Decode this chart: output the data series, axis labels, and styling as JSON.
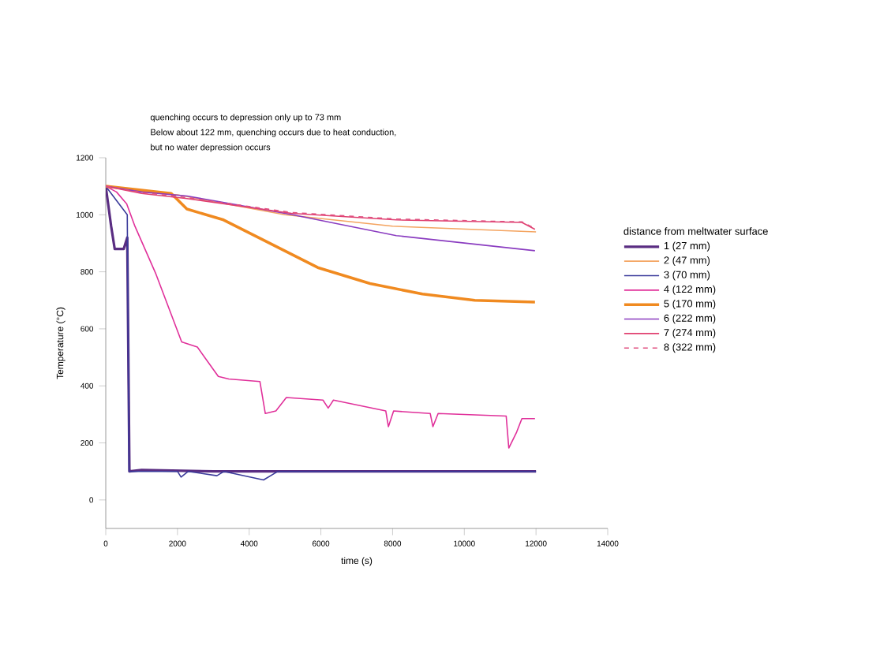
{
  "chart_data": {
    "type": "line",
    "annotations": [
      "quenching occurs to depression only up to 73 mm",
      "Below about 122 mm, quenching occurs due to heat conduction,",
      "but no water depression occurs"
    ],
    "xlabel": "time (s)",
    "ylabel": "Temperature (°C)",
    "legend_title": "distance from meltwater surface",
    "xlim": [
      0,
      14000
    ],
    "ylim": [
      -100,
      1200
    ],
    "xticks": [
      0,
      2000,
      4000,
      6000,
      8000,
      10000,
      12000,
      14000
    ],
    "yticks": [
      0,
      200,
      400,
      600,
      800,
      1000,
      1200
    ],
    "legend": "right",
    "grid": false,
    "series": [
      {
        "name": "1 (27 mm)",
        "color": "#5a2d82",
        "x": [
          0,
          150,
          250,
          500,
          600,
          660,
          1000,
          3000,
          6000,
          12000
        ],
        "values": [
          1100,
          960,
          880,
          880,
          920,
          100,
          105,
          100,
          100,
          100
        ]
      },
      {
        "name": "2 (47 mm)",
        "color": "#f4a460",
        "x": [
          0,
          1000,
          2000,
          5000,
          8000,
          12000
        ],
        "values": [
          1100,
          1080,
          1070,
          1000,
          960,
          940
        ]
      },
      {
        "name": "3 (70 mm)",
        "color": "#3a3a9a",
        "x": [
          0,
          300,
          600,
          650,
          2000,
          2100,
          2300,
          3100,
          3300,
          4400,
          4800,
          12000
        ],
        "values": [
          1100,
          1050,
          1000,
          100,
          100,
          80,
          100,
          85,
          100,
          70,
          100,
          100
        ]
      },
      {
        "name": "4 (122 mm)",
        "color": "#e0309a",
        "x": [
          0,
          300,
          584,
          800,
          1387,
          2117,
          2555,
          3139,
          3430,
          4300,
          4450,
          4745,
          5036,
          6058,
          6204,
          6350,
          7810,
          7883,
          8029,
          9050,
          9124,
          9270,
          11168,
          11241,
          11460,
          11606,
          11971
        ],
        "values": [
          1100,
          1080,
          1038,
          964,
          796,
          554,
          536,
          433,
          424,
          415,
          303,
          312,
          359,
          350,
          322,
          350,
          312,
          257,
          312,
          303,
          257,
          303,
          294,
          182,
          238,
          285,
          285
        ]
      },
      {
        "name": "5 (170 mm)",
        "color": "#f08a20",
        "x": [
          0,
          1825,
          2263,
          3285,
          4453,
          5912,
          7372,
          8832,
          10292,
          11971
        ],
        "values": [
          1100,
          1075,
          1020,
          982,
          908,
          815,
          759,
          722,
          700,
          694
        ]
      },
      {
        "name": "6 (222 mm)",
        "color": "#8a3cc0",
        "x": [
          0,
          1000,
          2263,
          5182,
          8102,
          11971
        ],
        "values": [
          1100,
          1080,
          1066,
          1001,
          927,
          874
        ]
      },
      {
        "name": "7 (274 mm)",
        "color": "#e04070",
        "x": [
          0,
          1000,
          2263,
          5182,
          8102,
          11606,
          11971
        ],
        "values": [
          1100,
          1075,
          1057,
          1005,
          982,
          973,
          949
        ]
      },
      {
        "name": "8 (322 mm)",
        "color": "#e05080",
        "line_style": "dashed",
        "x": [
          0,
          1000,
          2263,
          5182,
          8102,
          11606,
          11971
        ],
        "values": [
          1100,
          1078,
          1060,
          1008,
          985,
          975,
          952
        ]
      }
    ]
  }
}
